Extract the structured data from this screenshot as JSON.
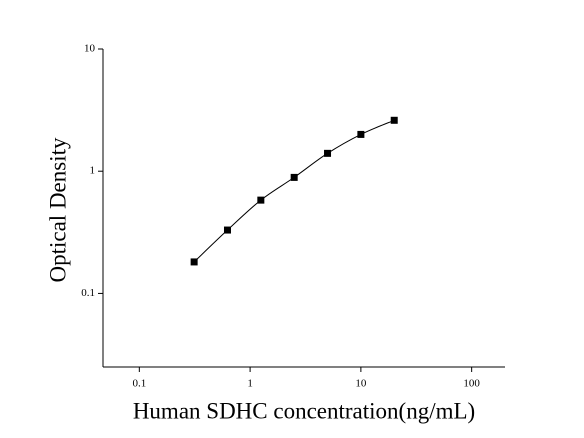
{
  "chart_data": {
    "type": "scatter",
    "x_label": "Human SDHC concentration(ng/mL)",
    "y_label": "Optical Density",
    "xscale": "log",
    "yscale": "log",
    "xlim": [
      0.047,
      200
    ],
    "ylim": [
      0.025,
      10
    ],
    "xticks": [
      0.1,
      1,
      10,
      100
    ],
    "yticks": [
      0.1,
      1,
      10
    ],
    "series": [
      {
        "color": "#000000",
        "fit_line": true,
        "x": [
          0.3125,
          0.625,
          1.25,
          2.5,
          5,
          10,
          20
        ],
        "values": [
          0.181,
          0.33,
          0.58,
          0.89,
          1.4,
          2.0,
          2.61
        ]
      }
    ]
  }
}
